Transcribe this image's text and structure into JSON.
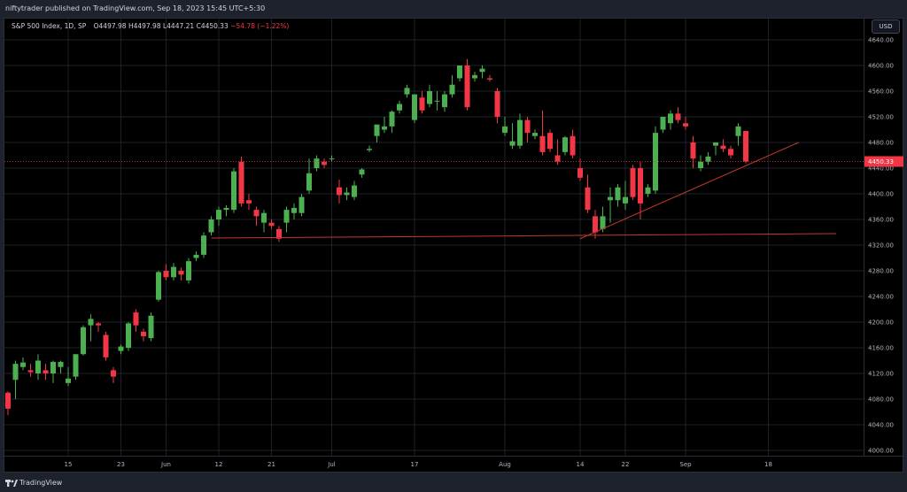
{
  "publish_note": "niftytrader published on TradingView.com, Sep 18, 2023 15:45 UTC+5:30",
  "legend": {
    "symbol": "S&P 500 Index, 1D, SP",
    "open": "O4497.98",
    "high": "H4497.98",
    "low": "L4447.21",
    "close": "C4450.33",
    "change": "−54.78 (−1.22%)"
  },
  "currency": "USD",
  "last_price": "4450.33",
  "footer_brand": "TradingView",
  "colors": {
    "up": "#4caf50",
    "down": "#f23645",
    "trendline": "#c0392b",
    "grid": "#2a2e39"
  },
  "chart_data": {
    "type": "candlestick",
    "ylim": [
      4000,
      4640
    ],
    "y_ticks": [
      "4640.00",
      "4600.00",
      "4560.00",
      "4520.00",
      "4480.00",
      "4440.00",
      "4400.00",
      "4360.00",
      "4320.00",
      "4280.00",
      "4240.00",
      "4200.00",
      "4160.00",
      "4120.00",
      "4080.00",
      "4040.00",
      "4000.00"
    ],
    "x_ticks": [
      {
        "label": "15",
        "index": 8
      },
      {
        "label": "23",
        "index": 15
      },
      {
        "label": "Jun",
        "index": 21
      },
      {
        "label": "12",
        "index": 28
      },
      {
        "label": "21",
        "index": 35
      },
      {
        "label": "Jul",
        "index": 43
      },
      {
        "label": "17",
        "index": 54
      },
      {
        "label": "Aug",
        "index": 66
      },
      {
        "label": "14",
        "index": 76
      },
      {
        "label": "22",
        "index": 82
      },
      {
        "label": "Sep",
        "index": 90
      },
      {
        "label": "18",
        "index": 101
      }
    ],
    "candles": [
      [
        4090,
        4092,
        4055,
        4065
      ],
      [
        4110,
        4140,
        4080,
        4135
      ],
      [
        4130,
        4145,
        4125,
        4137
      ],
      [
        4125,
        4135,
        4115,
        4122
      ],
      [
        4120,
        4150,
        4110,
        4140
      ],
      [
        4125,
        4135,
        4110,
        4120
      ],
      [
        4120,
        4140,
        4105,
        4138
      ],
      [
        4130,
        4140,
        4120,
        4138
      ],
      [
        4105,
        4130,
        4100,
        4112
      ],
      [
        4115,
        4150,
        4110,
        4150
      ],
      [
        4150,
        4195,
        4148,
        4192
      ],
      [
        4195,
        4212,
        4170,
        4205
      ],
      [
        4198,
        4200,
        4185,
        4195
      ],
      [
        4180,
        4185,
        4140,
        4145
      ],
      [
        4125,
        4130,
        4105,
        4115
      ],
      [
        4155,
        4165,
        4150,
        4162
      ],
      [
        4160,
        4200,
        4155,
        4198
      ],
      [
        4215,
        4220,
        4185,
        4195
      ],
      [
        4185,
        4190,
        4170,
        4178
      ],
      [
        4175,
        4215,
        4170,
        4210
      ],
      [
        4235,
        4280,
        4232,
        4278
      ],
      [
        4280,
        4290,
        4265,
        4270
      ],
      [
        4270,
        4292,
        4265,
        4286
      ],
      [
        4280,
        4285,
        4265,
        4274
      ],
      [
        4265,
        4300,
        4260,
        4295
      ],
      [
        4300,
        4310,
        4295,
        4305
      ],
      [
        4305,
        4340,
        4300,
        4335
      ],
      [
        4340,
        4365,
        4335,
        4360
      ],
      [
        4360,
        4380,
        4350,
        4375
      ],
      [
        4375,
        4382,
        4365,
        4378
      ],
      [
        4375,
        4440,
        4370,
        4435
      ],
      [
        4450,
        4458,
        4380,
        4385
      ],
      [
        4390,
        4400,
        4375,
        4385
      ],
      [
        4375,
        4380,
        4350,
        4365
      ],
      [
        4355,
        4375,
        4340,
        4370
      ],
      [
        4355,
        4360,
        4345,
        4350
      ],
      [
        4345,
        4350,
        4325,
        4330
      ],
      [
        4355,
        4380,
        4340,
        4375
      ],
      [
        4370,
        4385,
        4360,
        4378
      ],
      [
        4370,
        4400,
        4365,
        4395
      ],
      [
        4405,
        4455,
        4400,
        4432
      ],
      [
        4440,
        4460,
        4435,
        4455
      ],
      [
        4450,
        4455,
        4440,
        4445
      ],
      [
        4455,
        4460,
        4450,
        4455
      ],
      [
        4410,
        4422,
        4385,
        4398
      ],
      [
        4398,
        4410,
        4390,
        4402
      ],
      [
        4395,
        4420,
        4390,
        4413
      ],
      [
        4430,
        4440,
        4425,
        4438
      ],
      [
        4468,
        4475,
        4465,
        4470
      ],
      [
        4490,
        4505,
        4480,
        4508
      ],
      [
        4500,
        4520,
        4495,
        4505
      ],
      [
        4505,
        4530,
        4495,
        4528
      ],
      [
        4530,
        4545,
        4525,
        4540
      ],
      [
        4555,
        4570,
        4550,
        4565
      ],
      [
        4515,
        4555,
        4510,
        4555
      ],
      [
        4550,
        4560,
        4525,
        4530
      ],
      [
        4540,
        4570,
        4535,
        4560
      ],
      [
        4545,
        4560,
        4530,
        4545
      ],
      [
        4535,
        4560,
        4528,
        4555
      ],
      [
        4555,
        4585,
        4550,
        4570
      ],
      [
        4580,
        4600,
        4575,
        4600
      ],
      [
        4600,
        4610,
        4530,
        4535
      ],
      [
        4580,
        4590,
        4575,
        4585
      ],
      [
        4590,
        4600,
        4580,
        4595
      ],
      [
        4580,
        4585,
        4575,
        4578
      ],
      [
        4560,
        4565,
        4510,
        4520
      ],
      [
        4495,
        4520,
        4490,
        4505
      ],
      [
        4475,
        4510,
        4470,
        4482
      ],
      [
        4475,
        4525,
        4470,
        4515
      ],
      [
        4515,
        4520,
        4480,
        4495
      ],
      [
        4490,
        4500,
        4485,
        4495
      ],
      [
        4490,
        4530,
        4460,
        4465
      ],
      [
        4495,
        4500,
        4465,
        4470
      ],
      [
        4460,
        4485,
        4445,
        4450
      ],
      [
        4465,
        4490,
        4460,
        4488
      ],
      [
        4490,
        4500,
        4455,
        4460
      ],
      [
        4440,
        4455,
        4420,
        4425
      ],
      [
        4410,
        4430,
        4370,
        4375
      ],
      [
        4365,
        4375,
        4330,
        4340
      ],
      [
        4345,
        4380,
        4340,
        4365
      ],
      [
        4390,
        4410,
        4355,
        4395
      ],
      [
        4390,
        4415,
        4380,
        4410
      ],
      [
        4385,
        4420,
        4375,
        4395
      ],
      [
        4440,
        4445,
        4390,
        4395
      ],
      [
        4440,
        4450,
        4360,
        4385
      ],
      [
        4400,
        4415,
        4395,
        4410
      ],
      [
        4405,
        4505,
        4400,
        4495
      ],
      [
        4500,
        4515,
        4495,
        4520
      ],
      [
        4510,
        4530,
        4500,
        4525
      ],
      [
        4525,
        4535,
        4510,
        4515
      ],
      [
        4510,
        4520,
        4500,
        4505
      ],
      [
        4480,
        4490,
        4440,
        4455
      ],
      [
        4440,
        4460,
        4435,
        4450
      ],
      [
        4450,
        4465,
        4445,
        4458
      ],
      [
        4475,
        4480,
        4460,
        4480
      ],
      [
        4475,
        4485,
        4465,
        4470
      ],
      [
        4470,
        4475,
        4455,
        4460
      ],
      [
        4490,
        4510,
        4475,
        4505
      ],
      [
        4497.98,
        4497.98,
        4447.21,
        4450.33
      ]
    ],
    "trendlines": [
      {
        "from": {
          "index": 27,
          "price": 4331
        },
        "to": {
          "index": 110,
          "price": 4338
        }
      },
      {
        "from": {
          "index": 76,
          "price": 4330
        },
        "to": {
          "index": 105,
          "price": 4480
        }
      }
    ]
  }
}
